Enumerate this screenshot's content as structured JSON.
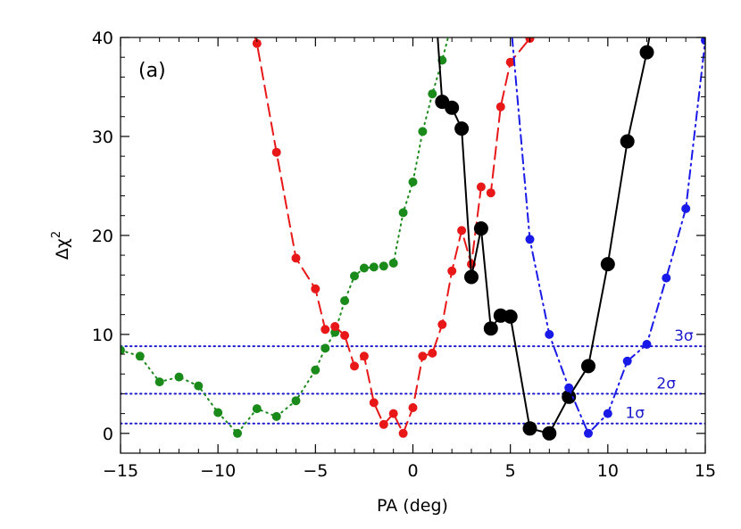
{
  "chart_data": {
    "type": "line",
    "panel_label": "(a)",
    "xlabel": "PA (deg)",
    "ylabel_base": "Δχ",
    "ylabel_sup": "2",
    "xlim": [
      -15,
      15
    ],
    "ylim": [
      -2,
      40
    ],
    "x_ticks": [
      -15,
      -10,
      -5,
      0,
      5,
      10,
      15
    ],
    "y_ticks": [
      0,
      10,
      20,
      30,
      40
    ],
    "x_tick_labels": [
      "−15",
      "−10",
      "−5",
      "0",
      "5",
      "10",
      "15"
    ],
    "y_tick_labels": [
      "0",
      "10",
      "20",
      "30",
      "40"
    ],
    "grid": false,
    "reference_lines": [
      {
        "y": 1.0,
        "label": "1σ",
        "label_x": 10.9,
        "color": "#1a1acc"
      },
      {
        "y": 4.0,
        "label": "2σ",
        "label_x": 12.5,
        "color": "#1a1acc"
      },
      {
        "y": 8.8,
        "label": "3σ",
        "label_x": 13.4,
        "color": "#1a1acc"
      }
    ],
    "series": [
      {
        "color": "#1a8a1a",
        "line_style": "dotted",
        "marker_size": "small",
        "points": [
          [
            -15,
            8.4
          ],
          [
            -14,
            7.8
          ],
          [
            -13,
            5.2
          ],
          [
            -12,
            5.7
          ],
          [
            -11,
            4.8
          ],
          [
            -10,
            2.1
          ],
          [
            -9,
            0.0
          ],
          [
            -8,
            2.5
          ],
          [
            -7,
            1.7
          ],
          [
            -6,
            3.3
          ],
          [
            -5,
            6.4
          ],
          [
            -4.5,
            8.6
          ],
          [
            -4,
            10.2
          ],
          [
            -3.5,
            13.4
          ],
          [
            -3,
            15.9
          ],
          [
            -2.5,
            16.7
          ],
          [
            -2,
            16.8
          ],
          [
            -1.5,
            16.9
          ],
          [
            -1,
            17.2
          ],
          [
            -0.5,
            22.3
          ],
          [
            0,
            25.4
          ],
          [
            0.5,
            30.5
          ],
          [
            1,
            34.3
          ],
          [
            1.5,
            37.7
          ],
          [
            2,
            41.5
          ]
        ]
      },
      {
        "color": "#e81818",
        "line_style": "dashed",
        "marker_size": "small",
        "points": [
          [
            -8.5,
            42.5
          ],
          [
            -8,
            39.4
          ],
          [
            -7,
            28.4
          ],
          [
            -6,
            17.7
          ],
          [
            -5,
            14.6
          ],
          [
            -4.5,
            10.5
          ],
          [
            -4,
            10.8
          ],
          [
            -3.5,
            9.9
          ],
          [
            -3,
            6.8
          ],
          [
            -2.5,
            7.8
          ],
          [
            -2,
            3.1
          ],
          [
            -1.5,
            0.9
          ],
          [
            -1,
            2.0
          ],
          [
            -0.5,
            0.0
          ],
          [
            0,
            2.6
          ],
          [
            0.5,
            7.8
          ],
          [
            1,
            8.1
          ],
          [
            1.5,
            11.0
          ],
          [
            2,
            16.4
          ],
          [
            2.5,
            20.5
          ],
          [
            3,
            17.1
          ],
          [
            3.5,
            24.9
          ],
          [
            4,
            24.3
          ],
          [
            4.5,
            33.0
          ],
          [
            5,
            37.5
          ],
          [
            6,
            39.9
          ]
        ]
      },
      {
        "color": "#000000",
        "line_style": "solid",
        "marker_size": "large",
        "points": [
          [
            1.2,
            42.0
          ],
          [
            1.5,
            33.5
          ],
          [
            2,
            32.9
          ],
          [
            2.5,
            30.8
          ],
          [
            3,
            15.8
          ],
          [
            3.5,
            20.7
          ],
          [
            4,
            10.6
          ],
          [
            4.5,
            11.9
          ],
          [
            5,
            11.8
          ],
          [
            6,
            0.5
          ],
          [
            7,
            0.0
          ],
          [
            8,
            3.7
          ],
          [
            9,
            6.8
          ],
          [
            10,
            17.1
          ],
          [
            11,
            29.5
          ],
          [
            12,
            38.5
          ],
          [
            12.3,
            42.0
          ]
        ]
      },
      {
        "color": "#1a1ae8",
        "line_style": "dashdot",
        "marker_size": "small",
        "points": [
          [
            5,
            42.0
          ],
          [
            6,
            19.6
          ],
          [
            7,
            10.0
          ],
          [
            8,
            4.6
          ],
          [
            9,
            0.0
          ],
          [
            10,
            2.0
          ],
          [
            11,
            7.3
          ],
          [
            12,
            9.0
          ],
          [
            13,
            15.7
          ],
          [
            14,
            22.7
          ],
          [
            15,
            39.7
          ]
        ]
      }
    ]
  }
}
